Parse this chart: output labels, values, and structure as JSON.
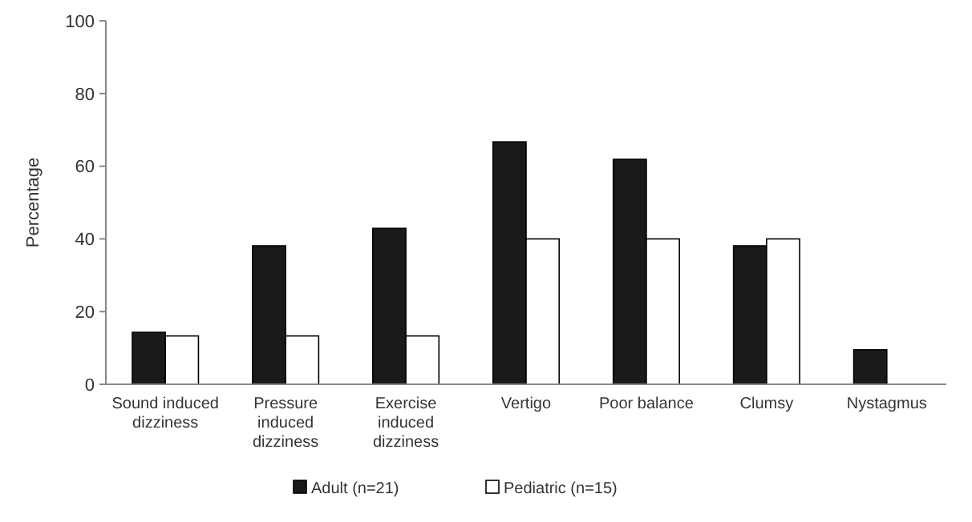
{
  "chart_data": {
    "type": "bar",
    "ylabel": "Percentage",
    "categories": [
      "Sound induced dizziness",
      "Pressure induced dizziness",
      "Exercise induced dizziness",
      "Vertigo",
      "Poor balance",
      "Clumsy",
      "Nystagmus"
    ],
    "series": [
      {
        "name": "Adult (n=21)",
        "color": "#1a1a1a",
        "values": [
          14.3,
          38.1,
          42.9,
          66.7,
          61.9,
          38.1,
          9.5
        ]
      },
      {
        "name": "Pediatric (n=15)",
        "color": "#ffffff",
        "values": [
          13.3,
          13.3,
          13.3,
          40,
          40,
          40,
          0
        ]
      }
    ],
    "ylim": [
      0,
      100
    ],
    "yticks": [
      0,
      20,
      40,
      60,
      80,
      100
    ],
    "grid": false,
    "legend": "bottom"
  }
}
